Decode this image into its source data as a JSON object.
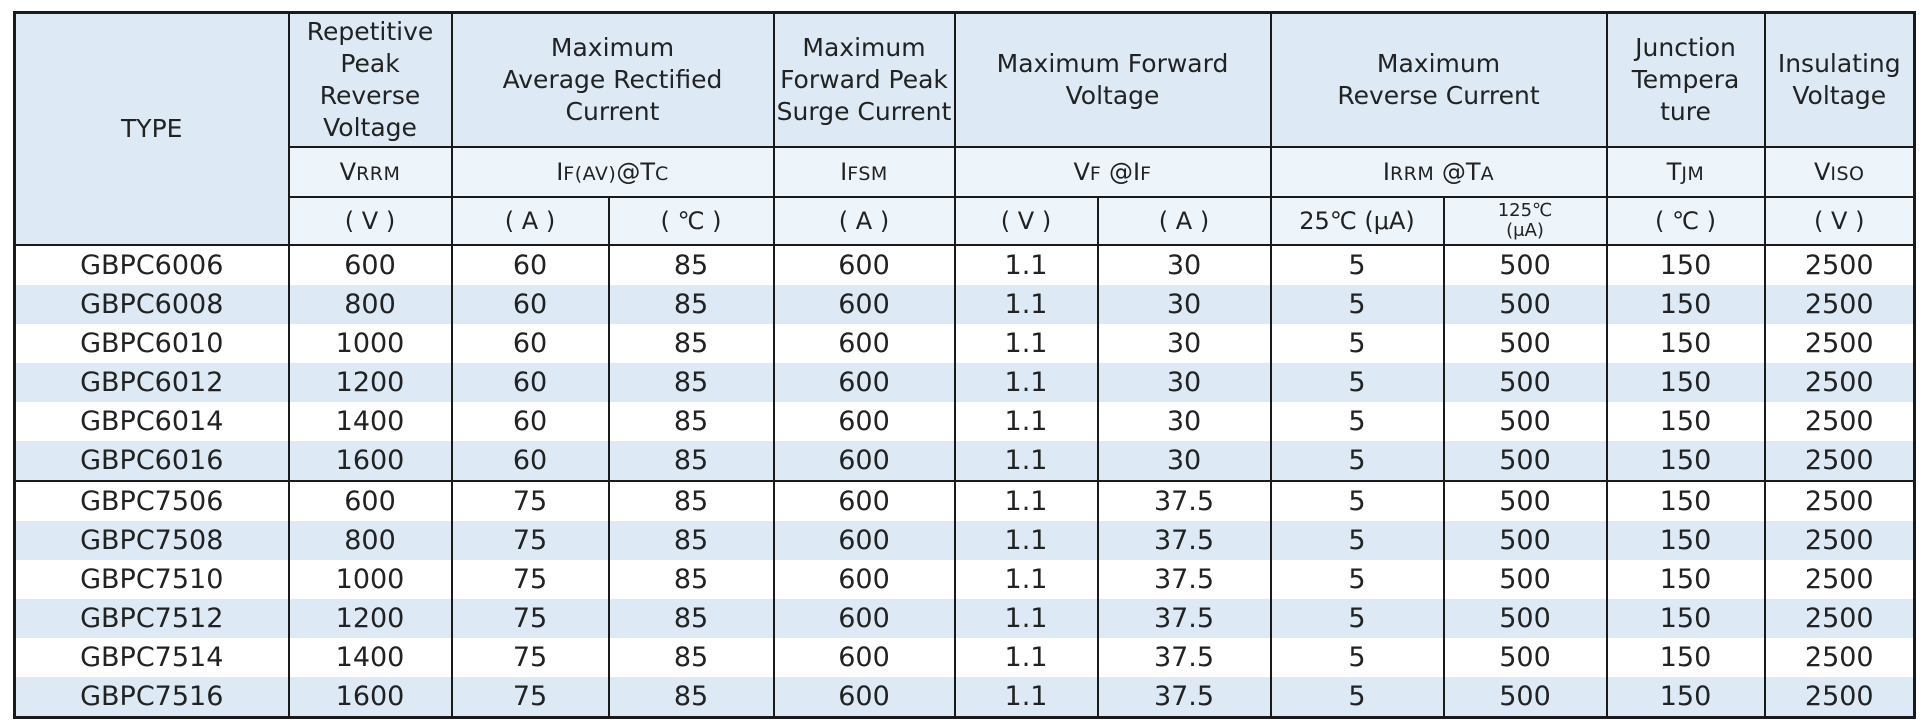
{
  "header": {
    "type": "TYPE",
    "vrrm_title": "Repetitive Peak Reverse Voltage",
    "iav_title": "Maximum Average Rectified Current",
    "ifsm_title": "Maximum Forward Peak Surge Current",
    "vf_title": "Maximum Forward Voltage",
    "irrm_title": "Maximum Reverse Current",
    "tj_title": "Junction Tempera ture",
    "viso_title": "Insulating Voltage",
    "sym": {
      "vrrm_main": "V",
      "vrrm_sub": "RRM",
      "iav_main": "I",
      "iav_sub": "F(AV)",
      "iav_at": "@T",
      "iav_at_sub": "C",
      "ifsm_main": "I",
      "ifsm_sub": "FSM",
      "vf_main": "V",
      "vf_sub": "F",
      "vf_at": " @I",
      "vf_at_sub": "F",
      "irrm_main": "I",
      "irrm_sub": "RRM",
      "irrm_at": " @T",
      "irrm_at_sub": "A",
      "tj_main": "T",
      "tj_sub": "JM",
      "viso_main": "V",
      "viso_sub": "ISO"
    },
    "units": {
      "vrrm": "( V )",
      "iav_a": "( A )",
      "iav_c": "( ℃ )",
      "ifsm": "( A )",
      "vf_v": "( V )",
      "vf_a": "( A )",
      "ir_25": "25℃ (μA)",
      "ir_125_top": "125℃",
      "ir_125_bottom": "(μA)",
      "tj": "( ℃ )",
      "viso": "( V )"
    }
  },
  "rows": [
    [
      "GBPC6006",
      "600",
      "60",
      "85",
      "600",
      "1.1",
      "30",
      "5",
      "500",
      "150",
      "2500"
    ],
    [
      "GBPC6008",
      "800",
      "60",
      "85",
      "600",
      "1.1",
      "30",
      "5",
      "500",
      "150",
      "2500"
    ],
    [
      "GBPC6010",
      "1000",
      "60",
      "85",
      "600",
      "1.1",
      "30",
      "5",
      "500",
      "150",
      "2500"
    ],
    [
      "GBPC6012",
      "1200",
      "60",
      "85",
      "600",
      "1.1",
      "30",
      "5",
      "500",
      "150",
      "2500"
    ],
    [
      "GBPC6014",
      "1400",
      "60",
      "85",
      "600",
      "1.1",
      "30",
      "5",
      "500",
      "150",
      "2500"
    ],
    [
      "GBPC6016",
      "1600",
      "60",
      "85",
      "600",
      "1.1",
      "30",
      "5",
      "500",
      "150",
      "2500"
    ],
    [
      "GBPC7506",
      "600",
      "75",
      "85",
      "600",
      "1.1",
      "37.5",
      "5",
      "500",
      "150",
      "2500"
    ],
    [
      "GBPC7508",
      "800",
      "75",
      "85",
      "600",
      "1.1",
      "37.5",
      "5",
      "500",
      "150",
      "2500"
    ],
    [
      "GBPC7510",
      "1000",
      "75",
      "85",
      "600",
      "1.1",
      "37.5",
      "5",
      "500",
      "150",
      "2500"
    ],
    [
      "GBPC7512",
      "1200",
      "75",
      "85",
      "600",
      "1.1",
      "37.5",
      "5",
      "500",
      "150",
      "2500"
    ],
    [
      "GBPC7514",
      "1400",
      "75",
      "85",
      "600",
      "1.1",
      "37.5",
      "5",
      "500",
      "150",
      "2500"
    ],
    [
      "GBPC7516",
      "1600",
      "75",
      "85",
      "600",
      "1.1",
      "37.5",
      "5",
      "500",
      "150",
      "2500"
    ]
  ]
}
